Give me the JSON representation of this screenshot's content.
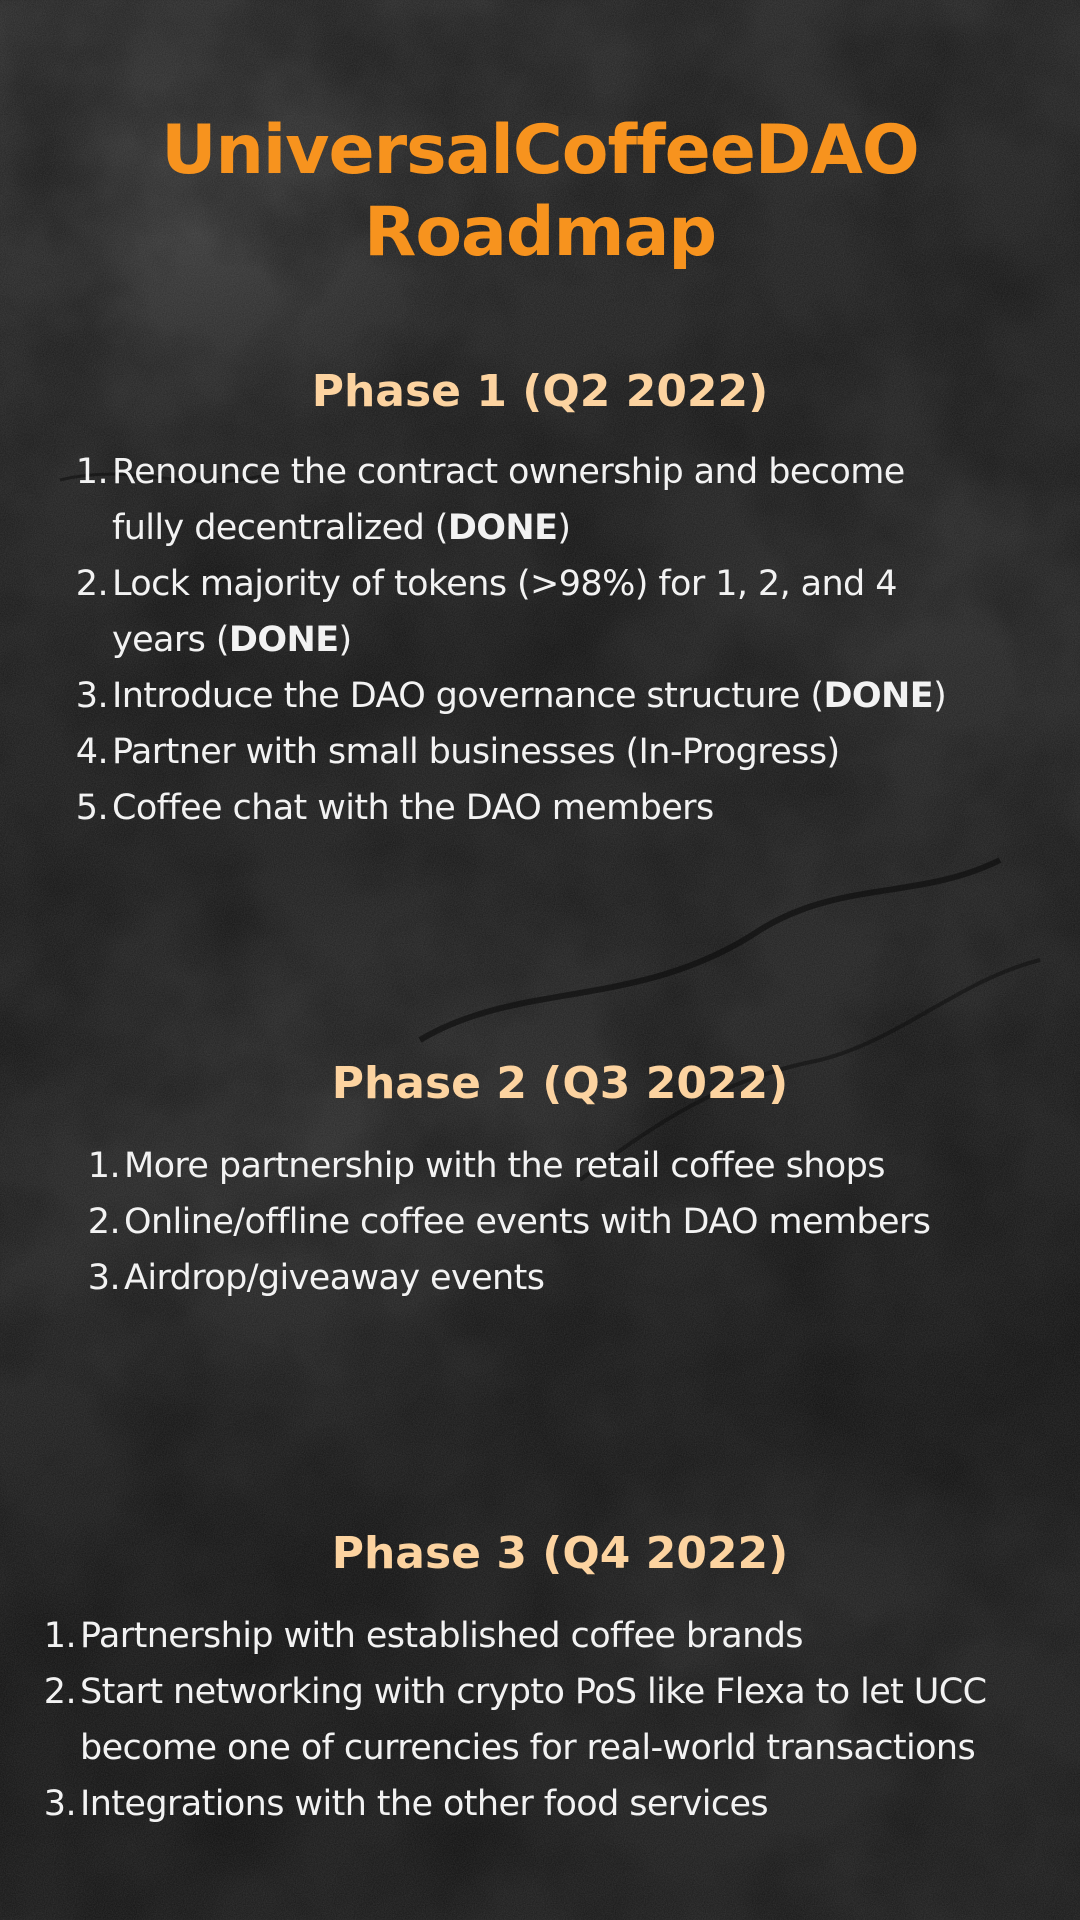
{
  "title": {
    "line1": "UniversalCoffeeDAO",
    "line2": "Roadmap"
  },
  "phases": [
    {
      "heading": "Phase 1 (Q2 2022)",
      "items": [
        {
          "number": "1.",
          "line1": "Renounce the contract ownership and become",
          "line2_pre": "fully decentralized (",
          "status": "DONE",
          "line2_post": ")"
        },
        {
          "number": "2.",
          "line1": "Lock majority of tokens (>98%) for 1, 2, and 4",
          "line2_pre": "years (",
          "status": "DONE",
          "line2_post": ")"
        },
        {
          "number": "3.",
          "text_pre": "Introduce the DAO governance structure (",
          "status": "DONE",
          "text_post": ")"
        },
        {
          "number": "4.",
          "text": "Partner with small businesses (In-Progress)"
        },
        {
          "number": "5.",
          "text": "Coffee chat with the DAO members"
        }
      ]
    },
    {
      "heading": "Phase 2 (Q3 2022)",
      "items": [
        {
          "number": "1.",
          "text": "More partnership with the retail coffee shops"
        },
        {
          "number": "2.",
          "text": "Online/offline coffee events with DAO members"
        },
        {
          "number": "3.",
          "text": "Airdrop/giveaway events"
        }
      ]
    },
    {
      "heading": "Phase 3 (Q4 2022)",
      "items": [
        {
          "number": "1.",
          "text": "Partnership with established coffee brands"
        },
        {
          "number": "2.",
          "line1": "Start networking with crypto PoS like Flexa to let UCC",
          "line2": "become one of currencies for real-world transactions"
        },
        {
          "number": "3.",
          "text": "Integrations with the other food services"
        }
      ]
    }
  ],
  "colors": {
    "title": "#f7931e",
    "phase_heading": "#fcd3a0",
    "body_text": "#f2f2f2",
    "background": "#1e1e1e"
  }
}
